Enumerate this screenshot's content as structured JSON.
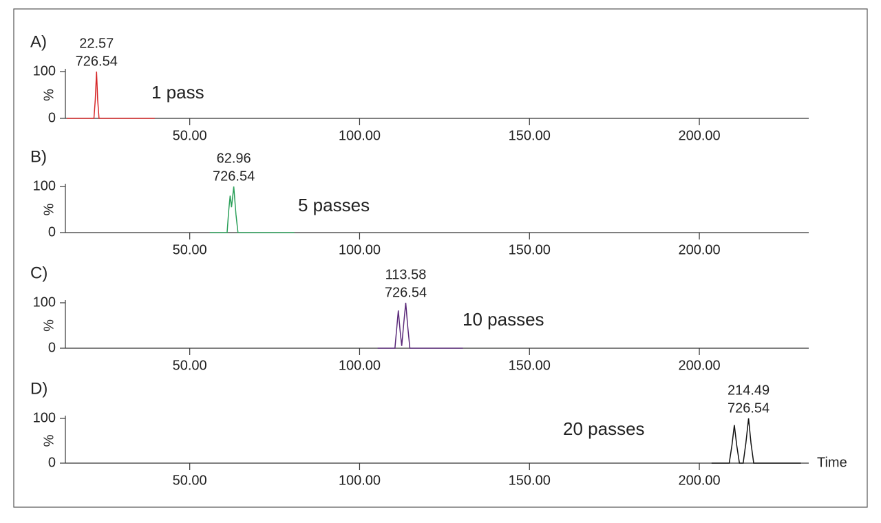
{
  "chart_data": [
    {
      "type": "line",
      "panel_label": "A)",
      "annotations": [
        "22.57",
        "726.54"
      ],
      "ylabel": "%",
      "xlim": [
        13.4,
        232.2
      ],
      "xticks": [
        {
          "value": 50,
          "label": "50.00"
        },
        {
          "value": 100,
          "label": "100.00"
        },
        {
          "value": 150,
          "label": "150.00"
        },
        {
          "value": 200,
          "label": "200.00"
        }
      ],
      "ylim": [
        0,
        100
      ],
      "yticks": [
        0,
        100
      ],
      "series": [
        {
          "name": "1 pass",
          "color": "#d62728",
          "x": [
            13.8,
            21.8,
            22.2,
            22.57,
            22.9,
            23.3,
            39.7
          ],
          "values": [
            0,
            0,
            40,
            100,
            40,
            0,
            0
          ]
        }
      ]
    },
    {
      "type": "line",
      "panel_label": "B)",
      "annotations": [
        "62.96",
        "726.54"
      ],
      "ylabel": "%",
      "xlim": [
        13.4,
        232.2
      ],
      "xticks": [
        {
          "value": 50,
          "label": "50.00"
        },
        {
          "value": 100,
          "label": "100.00"
        },
        {
          "value": 150,
          "label": "150.00"
        },
        {
          "value": 200,
          "label": "200.00"
        }
      ],
      "ylim": [
        0,
        100
      ],
      "yticks": [
        0,
        100
      ],
      "series": [
        {
          "name": "5 passes",
          "color": "#2ca05a",
          "x": [
            55.9,
            61.0,
            61.5,
            61.9,
            62.3,
            62.96,
            63.6,
            64.2,
            80.8
          ],
          "values": [
            0,
            0,
            50,
            80,
            55,
            100,
            40,
            0,
            0
          ]
        }
      ]
    },
    {
      "type": "line",
      "panel_label": "C)",
      "annotations": [
        "113.58",
        "726.54"
      ],
      "ylabel": "%",
      "xlim": [
        13.4,
        232.2
      ],
      "xticks": [
        {
          "value": 50,
          "label": "50.00"
        },
        {
          "value": 100,
          "label": "100.00"
        },
        {
          "value": 150,
          "label": "150.00"
        },
        {
          "value": 200,
          "label": "200.00"
        }
      ],
      "ylim": [
        0,
        100
      ],
      "yticks": [
        0,
        100
      ],
      "series": [
        {
          "name": "10 passes",
          "color": "#5b2a7a",
          "x": [
            105.3,
            110.4,
            111.0,
            111.4,
            111.9,
            112.4,
            113.0,
            113.58,
            114.2,
            114.8,
            130.4
          ],
          "values": [
            0,
            0,
            50,
            83,
            40,
            5,
            55,
            100,
            45,
            0,
            0
          ]
        }
      ]
    },
    {
      "type": "line",
      "panel_label": "D)",
      "annotations": [
        "214.49",
        "726.54"
      ],
      "ylabel": "%",
      "xlabel": "Time",
      "xlim": [
        13.4,
        232.2
      ],
      "xticks": [
        {
          "value": 50,
          "label": "50.00"
        },
        {
          "value": 100,
          "label": "100.00"
        },
        {
          "value": 150,
          "label": "150.00"
        },
        {
          "value": 200,
          "label": "200.00"
        }
      ],
      "ylim": [
        0,
        100
      ],
      "yticks": [
        0,
        100
      ],
      "series": [
        {
          "name": "20 passes",
          "color": "#111111",
          "x": [
            203.6,
            208.8,
            209.6,
            210.3,
            211.0,
            211.8,
            212.9,
            213.7,
            214.49,
            215.2,
            216.0,
            229.9
          ],
          "values": [
            0,
            0,
            40,
            85,
            40,
            0,
            0,
            45,
            100,
            45,
            0,
            0
          ]
        }
      ]
    }
  ]
}
